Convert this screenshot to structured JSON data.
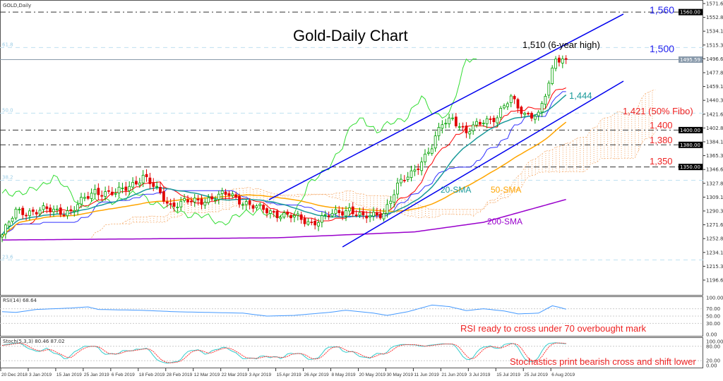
{
  "chart_data": {
    "type": "candlestick",
    "symbol_label": "GOLD,Daily",
    "title": "Gold-Daily Chart",
    "ylim": [
      1190,
      1578
    ],
    "y_ticks": [
      "1571.62",
      "1552.87",
      "1534.12",
      "1515.37",
      "1496.62",
      "1477.87",
      "1459.12",
      "1440.37",
      "1421.62",
      "1402.87",
      "1384.12",
      "1365.37",
      "1346.62",
      "1327.87",
      "1309.12",
      "1290.37",
      "1271.62",
      "1252.87",
      "1234.12",
      "1215.37",
      "1196.62"
    ],
    "y_tick_values": [
      1571.62,
      1552.87,
      1534.12,
      1515.37,
      1496.62,
      1477.87,
      1459.12,
      1440.37,
      1421.62,
      1402.87,
      1384.12,
      1365.37,
      1346.62,
      1327.87,
      1309.12,
      1290.37,
      1271.62,
      1252.87,
      1234.12,
      1215.37,
      1196.62
    ],
    "x_ticks": [
      "20 Dec 2018",
      "3 Jan 2019",
      "15 Jan 2019",
      "25 Jan 2019",
      "6 Feb 2019",
      "18 Feb 2019",
      "28 Feb 2019",
      "12 Mar 2019",
      "22 Mar 2019",
      "3 Apr 2019",
      "15 Apr 2019",
      "26 Apr 2019",
      "8 May 2019",
      "20 May 2019",
      "30 May 2019",
      "11 Jun 2019",
      "21 Jun 2019",
      "3 Jul 2019",
      "15 Jul 2019",
      "25 Jul 2019",
      "6 Aug 2019"
    ],
    "bars_per_tick": 8,
    "bar_count": 165,
    "close_keypoints": [
      [
        0,
        1258
      ],
      [
        4,
        1289
      ],
      [
        12,
        1291
      ],
      [
        20,
        1290
      ],
      [
        27,
        1318
      ],
      [
        33,
        1313
      ],
      [
        41,
        1337
      ],
      [
        49,
        1299
      ],
      [
        57,
        1304
      ],
      [
        66,
        1313
      ],
      [
        74,
        1294
      ],
      [
        82,
        1285
      ],
      [
        90,
        1275
      ],
      [
        96,
        1285
      ],
      [
        101,
        1294
      ],
      [
        105,
        1280
      ],
      [
        111,
        1289
      ],
      [
        115,
        1323
      ],
      [
        119,
        1342
      ],
      [
        125,
        1376
      ],
      [
        128,
        1409
      ],
      [
        131,
        1418
      ],
      [
        135,
        1395
      ],
      [
        140,
        1414
      ],
      [
        144,
        1418
      ],
      [
        148,
        1443
      ],
      [
        152,
        1423
      ],
      [
        156,
        1418
      ],
      [
        159,
        1462
      ],
      [
        161,
        1500
      ],
      [
        163,
        1497
      ],
      [
        164,
        1495
      ]
    ],
    "sma200_keypoints": [
      [
        0,
        1251
      ],
      [
        80,
        1254
      ],
      [
        120,
        1262
      ],
      [
        140,
        1275
      ],
      [
        164,
        1306
      ]
    ],
    "current_price": "1495.59",
    "current_price_value": 1495.59,
    "levels": [
      {
        "price": 1560,
        "label": "1560.00",
        "style": "dashdot"
      },
      {
        "price": 1400,
        "label": "1400.00",
        "style": "dashdot"
      },
      {
        "price": 1380,
        "label": "1380.00",
        "style": "dashdot"
      },
      {
        "price": 1350,
        "label": "1350.00",
        "style": "dash"
      }
    ],
    "fibo": [
      {
        "price": 1512,
        "label": "61.8"
      },
      {
        "price": 1423,
        "label": "50.0"
      },
      {
        "price": 1332,
        "label": "38.2"
      },
      {
        "price": 1224,
        "label": "23.6"
      }
    ],
    "channel": {
      "upper": [
        [
          77.6,
          1305.6
        ],
        [
          180.7,
          1557.3
        ]
      ],
      "lower": [
        [
          99,
          1241.6
        ],
        [
          180.7,
          1466.4
        ]
      ]
    },
    "rsi": {
      "label": "RSI(14) 68.64",
      "ylim": [
        0,
        100
      ],
      "ticks": [
        "100.00",
        "70.00",
        "50.00",
        "30.00",
        "0.00"
      ],
      "tick_values": [
        100,
        70,
        50,
        30,
        0
      ],
      "keypoints": [
        [
          0,
          62
        ],
        [
          4,
          60
        ],
        [
          10,
          68
        ],
        [
          20,
          72
        ],
        [
          25,
          75
        ],
        [
          28,
          68
        ],
        [
          40,
          66
        ],
        [
          50,
          62
        ],
        [
          60,
          60
        ],
        [
          70,
          58
        ],
        [
          77,
          50
        ],
        [
          85,
          52
        ],
        [
          95,
          60
        ],
        [
          100,
          66
        ],
        [
          108,
          58
        ],
        [
          112,
          52
        ],
        [
          118,
          62
        ],
        [
          125,
          80
        ],
        [
          130,
          76
        ],
        [
          135,
          65
        ],
        [
          140,
          70
        ],
        [
          146,
          64
        ],
        [
          150,
          56
        ],
        [
          156,
          58
        ],
        [
          160,
          78
        ],
        [
          162,
          74
        ],
        [
          164,
          68.64
        ]
      ]
    },
    "stoch": {
      "label": "Stoch(5,3,3) 80.46 87.02",
      "ylim": [
        0,
        100
      ],
      "ticks": [
        "100.00",
        "80.00",
        "20.00",
        "0.00"
      ],
      "tick_values": [
        100,
        80,
        20,
        0
      ]
    },
    "annotations": {
      "high": "1,510 (6-year high)",
      "l1560": "1,560",
      "l1500": "1,500",
      "l1444": "1,444",
      "l1421": "1,421 (50% Fibo)",
      "l1400": "1,400",
      "l1380": "1,380",
      "l1350": "1,350",
      "sma20": "20-SMA",
      "sma50": "50-SMA",
      "sma200": "200-SMA",
      "rsi_note": "RSI ready to cross under 70 overbought mark",
      "stoch_note": "Stochastics print bearish cross and shift lower"
    },
    "colors": {
      "up": "#00a000",
      "down": "#e00000",
      "sma20": "#1a9a9a",
      "sma50": "#ffa500",
      "sma200": "#9900cc",
      "channel": "#0000ee",
      "tenkan": "#ff0000",
      "kijun": "#3333ff",
      "chikou": "#33dd33",
      "cloud": "#f4a460",
      "rsi": "#4499ff",
      "stoch_k": "#33cccc",
      "stoch_d": "#ff3333"
    }
  }
}
